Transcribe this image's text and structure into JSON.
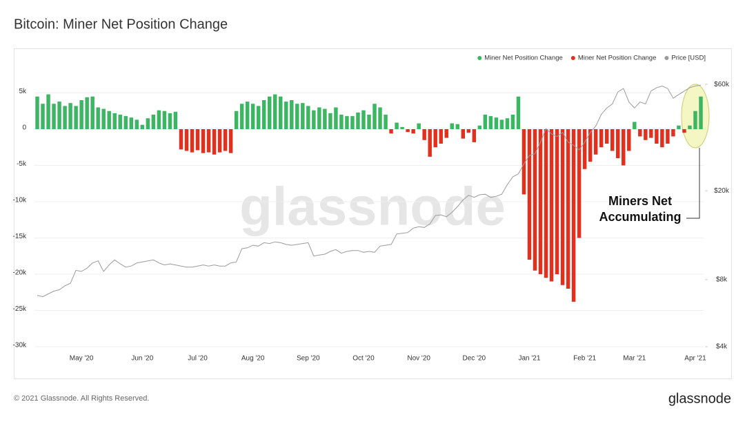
{
  "chart_data": {
    "type": "bar",
    "title": "Bitcoin: Miner Net Position Change",
    "watermark": "glassnode",
    "footer": "© 2021 Glassnode. All Rights Reserved.",
    "logo": "glassnode",
    "annotation": [
      "Miners Net",
      "Accumulating"
    ],
    "grid": true,
    "legend": "top-right",
    "ylim": [
      -30000,
      7000
    ],
    "yticks": [
      {
        "value": 5000,
        "label": "5k"
      },
      0,
      {
        "value": -5000,
        "label": "-5k"
      },
      {
        "value": -10000,
        "label": "-10k"
      },
      {
        "value": -15000,
        "label": "-15k"
      },
      {
        "value": -20000,
        "label": "-20k"
      },
      {
        "value": -25000,
        "label": "-25k"
      },
      {
        "value": -30000,
        "label": "-30k"
      }
    ],
    "y2lim": [
      4000,
      63800
    ],
    "y2scale": "log",
    "y2ticks": [
      {
        "value": 60000,
        "label": "$60k"
      },
      {
        "value": 20000,
        "label": "$20k"
      },
      {
        "value": 8000,
        "label": "$8k"
      },
      {
        "value": 4000,
        "label": "$4k"
      }
    ],
    "categories": [
      null,
      null,
      null,
      null,
      null,
      null,
      null,
      null,
      "May '20",
      null,
      null,
      null,
      null,
      null,
      null,
      null,
      null,
      null,
      null,
      "Jun '20",
      null,
      null,
      null,
      null,
      null,
      null,
      null,
      null,
      null,
      "Jul '20",
      null,
      null,
      null,
      null,
      null,
      null,
      null,
      null,
      null,
      "Aug '20",
      null,
      null,
      null,
      null,
      null,
      null,
      null,
      null,
      null,
      "Sep '20",
      null,
      null,
      null,
      null,
      null,
      null,
      null,
      null,
      null,
      "Oct '20",
      null,
      null,
      null,
      null,
      null,
      null,
      null,
      null,
      null,
      "Nov '20",
      null,
      null,
      null,
      null,
      null,
      null,
      null,
      null,
      null,
      "Dec '20",
      null,
      null,
      null,
      null,
      null,
      null,
      null,
      null,
      null,
      "Jan '21",
      null,
      null,
      null,
      null,
      null,
      null,
      null,
      null,
      null,
      "Feb '21",
      null,
      null,
      null,
      null,
      null,
      null,
      null,
      null,
      "Mar '21",
      null,
      null,
      null,
      null,
      null,
      null,
      null,
      null,
      null,
      null,
      "Apr '21",
      null
    ],
    "series": [
      {
        "name": "Miner Net Position Change",
        "color": "#3cb662",
        "values": [
          4500,
          3500,
          4800,
          3500,
          3800,
          3200,
          3600,
          3200,
          4000,
          4400,
          4500,
          3000,
          2800,
          2500,
          2200,
          2000,
          1800,
          1600,
          1300,
          600,
          1500,
          2000,
          2600,
          2500,
          2200,
          2400,
          null,
          null,
          null,
          null,
          null,
          null,
          null,
          null,
          null,
          null,
          2500,
          3500,
          3800,
          3500,
          3200,
          4000,
          4500,
          4800,
          4500,
          3800,
          4000,
          3500,
          3600,
          3200,
          2600,
          3000,
          2800,
          2200,
          3000,
          2000,
          1800,
          1800,
          2300,
          2600,
          2000,
          3500,
          3000,
          2000,
          null,
          900,
          300,
          null,
          null,
          800,
          null,
          null,
          null,
          null,
          null,
          800,
          700,
          null,
          null,
          null,
          500,
          2000,
          1800,
          1600,
          1300,
          1500,
          2000,
          4500,
          null,
          null,
          null,
          null,
          null,
          null,
          null,
          null,
          null,
          null,
          null,
          null,
          null,
          null,
          null,
          null,
          null,
          null,
          null,
          null,
          1000,
          null,
          null,
          null,
          null,
          null,
          null,
          null,
          500,
          null,
          500,
          2500,
          4500
        ]
      },
      {
        "name": "Miner Net Position Change",
        "color": "#e0301e",
        "values": [
          null,
          null,
          null,
          null,
          null,
          null,
          null,
          null,
          null,
          null,
          null,
          null,
          null,
          null,
          null,
          null,
          null,
          null,
          null,
          null,
          null,
          null,
          null,
          null,
          null,
          null,
          -2800,
          -3000,
          -3200,
          -2900,
          -3300,
          -3200,
          -3500,
          -3200,
          -3000,
          -3300,
          null,
          null,
          null,
          null,
          null,
          null,
          null,
          null,
          null,
          null,
          null,
          null,
          null,
          null,
          null,
          null,
          null,
          null,
          null,
          null,
          null,
          null,
          null,
          null,
          null,
          null,
          null,
          null,
          -600,
          null,
          null,
          -400,
          -600,
          null,
          -1500,
          -3800,
          -2500,
          -2000,
          -1200,
          null,
          null,
          -1300,
          -500,
          -1800,
          null,
          null,
          null,
          null,
          null,
          null,
          null,
          null,
          -9000,
          -18000,
          -19500,
          -20000,
          -20500,
          -21000,
          -20000,
          -21500,
          -22000,
          -23800,
          -15000,
          -5500,
          -4500,
          -3500,
          -2500,
          -2000,
          -3000,
          -4000,
          -5000,
          -3000,
          null,
          -1000,
          -1500,
          -1200,
          -2000,
          -2500,
          -2000,
          -1000,
          null,
          -500,
          null,
          null,
          null
        ]
      },
      {
        "name": "Price [USD]",
        "color": "#9a9a9a",
        "axis": "y2",
        "type": "line",
        "values": [
          6800,
          6700,
          6900,
          7100,
          7200,
          7500,
          7700,
          8800,
          8700,
          9000,
          9500,
          9700,
          8700,
          9300,
          9800,
          9400,
          9100,
          9200,
          9500,
          9600,
          9700,
          9800,
          9500,
          9300,
          9400,
          9300,
          9200,
          9100,
          9100,
          9200,
          9300,
          9200,
          9300,
          9200,
          9200,
          9500,
          9600,
          11000,
          11100,
          11400,
          11300,
          11700,
          11600,
          11800,
          11700,
          11500,
          11400,
          11500,
          11600,
          11700,
          10200,
          10300,
          10400,
          10700,
          10900,
          10500,
          10700,
          10800,
          10800,
          10600,
          10700,
          10600,
          11300,
          11400,
          11500,
          12800,
          12900,
          13000,
          13600,
          13800,
          13700,
          14200,
          15500,
          15600,
          15300,
          16000,
          17000,
          18200,
          19100,
          18700,
          19200,
          19300,
          18700,
          18900,
          19300,
          21300,
          23100,
          23800,
          26400,
          28800,
          29300,
          33000,
          38000,
          36000,
          35000,
          36500,
          33000,
          32000,
          30500,
          33000,
          36500,
          39000,
          44000,
          47000,
          49000,
          55500,
          57500,
          50000,
          47000,
          50000,
          49000,
          56000,
          58000,
          59000,
          57500,
          52000,
          54000,
          56000,
          58000,
          59000,
          59500
        ]
      }
    ]
  }
}
